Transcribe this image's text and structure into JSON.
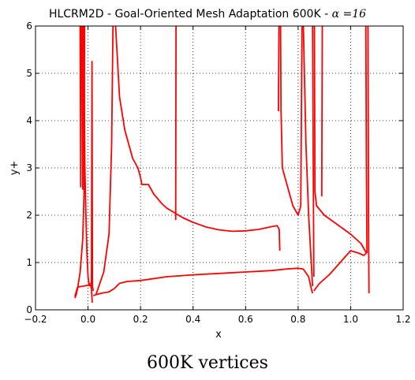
{
  "chart_data": {
    "type": "line",
    "title": "HLCRM2D - Goal-Oriented Mesh Adaptation 600K - ",
    "title_math": "α =16",
    "xlabel": "x",
    "ylabel": "y+",
    "xlim": [
      -0.2,
      1.2
    ],
    "ylim": [
      0,
      6
    ],
    "xticks": [
      -0.2,
      0.0,
      0.2,
      0.4,
      0.6,
      0.8,
      1.0,
      1.2
    ],
    "xtick_labels": [
      "−0.2",
      "0.0",
      "0.2",
      "0.4",
      "0.6",
      "0.8",
      "1.0",
      "1.2"
    ],
    "yticks": [
      0,
      1,
      2,
      3,
      4,
      5,
      6
    ],
    "ytick_labels": [
      "0",
      "1",
      "2",
      "3",
      "4",
      "5",
      "6"
    ],
    "grid": true,
    "grid_style": "dotted",
    "line_color": "#ff0000",
    "series": [
      {
        "segments": [
          [
            [
              -0.05,
              0.25
            ],
            [
              -0.045,
              0.32
            ],
            [
              -0.04,
              0.45
            ],
            [
              -0.03,
              0.8
            ],
            [
              -0.02,
              1.5
            ],
            [
              -0.015,
              2.5
            ],
            [
              -0.013,
              6.0
            ]
          ],
          [
            [
              -0.05,
              0.28
            ],
            [
              -0.04,
              0.48
            ],
            [
              -0.02,
              0.5
            ],
            [
              0.0,
              0.52
            ],
            [
              0.008,
              0.55
            ],
            [
              0.013,
              0.45
            ],
            [
              0.016,
              0.15
            ]
          ],
          [
            [
              -0.03,
              6.0
            ],
            [
              -0.028,
              2.6
            ],
            [
              -0.026,
              6.0
            ]
          ],
          [
            [
              -0.022,
              6.0
            ],
            [
              -0.02,
              2.55
            ],
            [
              -0.018,
              6.0
            ]
          ],
          [
            [
              -0.016,
              6.0
            ],
            [
              -0.012,
              3.0
            ],
            [
              -0.008,
              2.0
            ],
            [
              -0.004,
              1.2
            ],
            [
              0.0,
              0.7
            ],
            [
              0.005,
              0.5
            ]
          ],
          [
            [
              0.013,
              0.45
            ],
            [
              0.015,
              5.25
            ],
            [
              0.017,
              0.5
            ],
            [
              0.02,
              0.4
            ]
          ],
          [
            [
              0.02,
              0.3
            ],
            [
              0.03,
              0.32
            ],
            [
              0.05,
              0.35
            ],
            [
              0.08,
              0.38
            ],
            [
              0.1,
              0.45
            ],
            [
              0.12,
              0.56
            ],
            [
              0.15,
              0.6
            ],
            [
              0.2,
              0.62
            ],
            [
              0.3,
              0.7
            ],
            [
              0.4,
              0.74
            ],
            [
              0.5,
              0.77
            ],
            [
              0.6,
              0.8
            ],
            [
              0.7,
              0.83
            ],
            [
              0.75,
              0.86
            ],
            [
              0.8,
              0.88
            ],
            [
              0.82,
              0.86
            ],
            [
              0.84,
              0.7
            ],
            [
              0.85,
              0.45
            ],
            [
              0.855,
              0.35
            ]
          ],
          [
            [
              0.03,
              0.32
            ],
            [
              0.06,
              0.8
            ],
            [
              0.08,
              1.6
            ],
            [
              0.09,
              3.5
            ],
            [
              0.095,
              6.0
            ]
          ],
          [
            [
              0.105,
              6.0
            ],
            [
              0.12,
              4.5
            ],
            [
              0.14,
              3.8
            ],
            [
              0.17,
              3.2
            ],
            [
              0.19,
              3.0
            ],
            [
              0.2,
              2.8
            ],
            [
              0.205,
              2.65
            ],
            [
              0.23,
              2.65
            ],
            [
              0.25,
              2.45
            ],
            [
              0.28,
              2.25
            ],
            [
              0.3,
              2.15
            ],
            [
              0.33,
              2.05
            ],
            [
              0.36,
              1.95
            ],
            [
              0.4,
              1.85
            ],
            [
              0.45,
              1.75
            ],
            [
              0.5,
              1.69
            ],
            [
              0.55,
              1.66
            ],
            [
              0.6,
              1.67
            ],
            [
              0.65,
              1.7
            ],
            [
              0.7,
              1.76
            ],
            [
              0.72,
              1.78
            ],
            [
              0.728,
              1.7
            ],
            [
              0.73,
              1.25
            ]
          ],
          [
            [
              0.334,
              1.9
            ],
            [
              0.335,
              6.0
            ]
          ],
          [
            [
              0.725,
              4.2
            ],
            [
              0.727,
              6.0
            ]
          ],
          [
            [
              0.733,
              6.0
            ],
            [
              0.735,
              4.2
            ],
            [
              0.74,
              3.0
            ],
            [
              0.76,
              2.6
            ],
            [
              0.78,
              2.2
            ],
            [
              0.8,
              2.0
            ],
            [
              0.81,
              2.2
            ],
            [
              0.815,
              6.0
            ]
          ],
          [
            [
              0.82,
              6.0
            ],
            [
              0.83,
              3.5
            ],
            [
              0.84,
              2.0
            ],
            [
              0.85,
              1.0
            ],
            [
              0.855,
              0.5
            ]
          ],
          [
            [
              0.855,
              6.0
            ],
            [
              0.858,
              2.5
            ],
            [
              0.86,
              0.7
            ]
          ],
          [
            [
              0.862,
              6.0
            ],
            [
              0.864,
              2.5
            ],
            [
              0.87,
              2.2
            ],
            [
              0.9,
              2.0
            ],
            [
              0.95,
              1.8
            ],
            [
              1.0,
              1.6
            ],
            [
              1.04,
              1.4
            ],
            [
              1.06,
              1.2
            ]
          ],
          [
            [
              0.86,
              0.4
            ],
            [
              0.88,
              0.55
            ],
            [
              0.92,
              0.75
            ],
            [
              0.96,
              1.0
            ],
            [
              1.0,
              1.25
            ],
            [
              1.03,
              1.2
            ],
            [
              1.05,
              1.15
            ],
            [
              1.06,
              1.2
            ]
          ],
          [
            [
              0.89,
              2.4
            ],
            [
              0.892,
              6.0
            ]
          ],
          [
            [
              1.058,
              6.0
            ],
            [
              1.06,
              3.0
            ],
            [
              1.062,
              1.2
            ]
          ],
          [
            [
              1.066,
              6.0
            ],
            [
              1.068,
              2.0
            ],
            [
              1.07,
              0.35
            ]
          ]
        ]
      }
    ]
  },
  "caption": "600K vertices"
}
